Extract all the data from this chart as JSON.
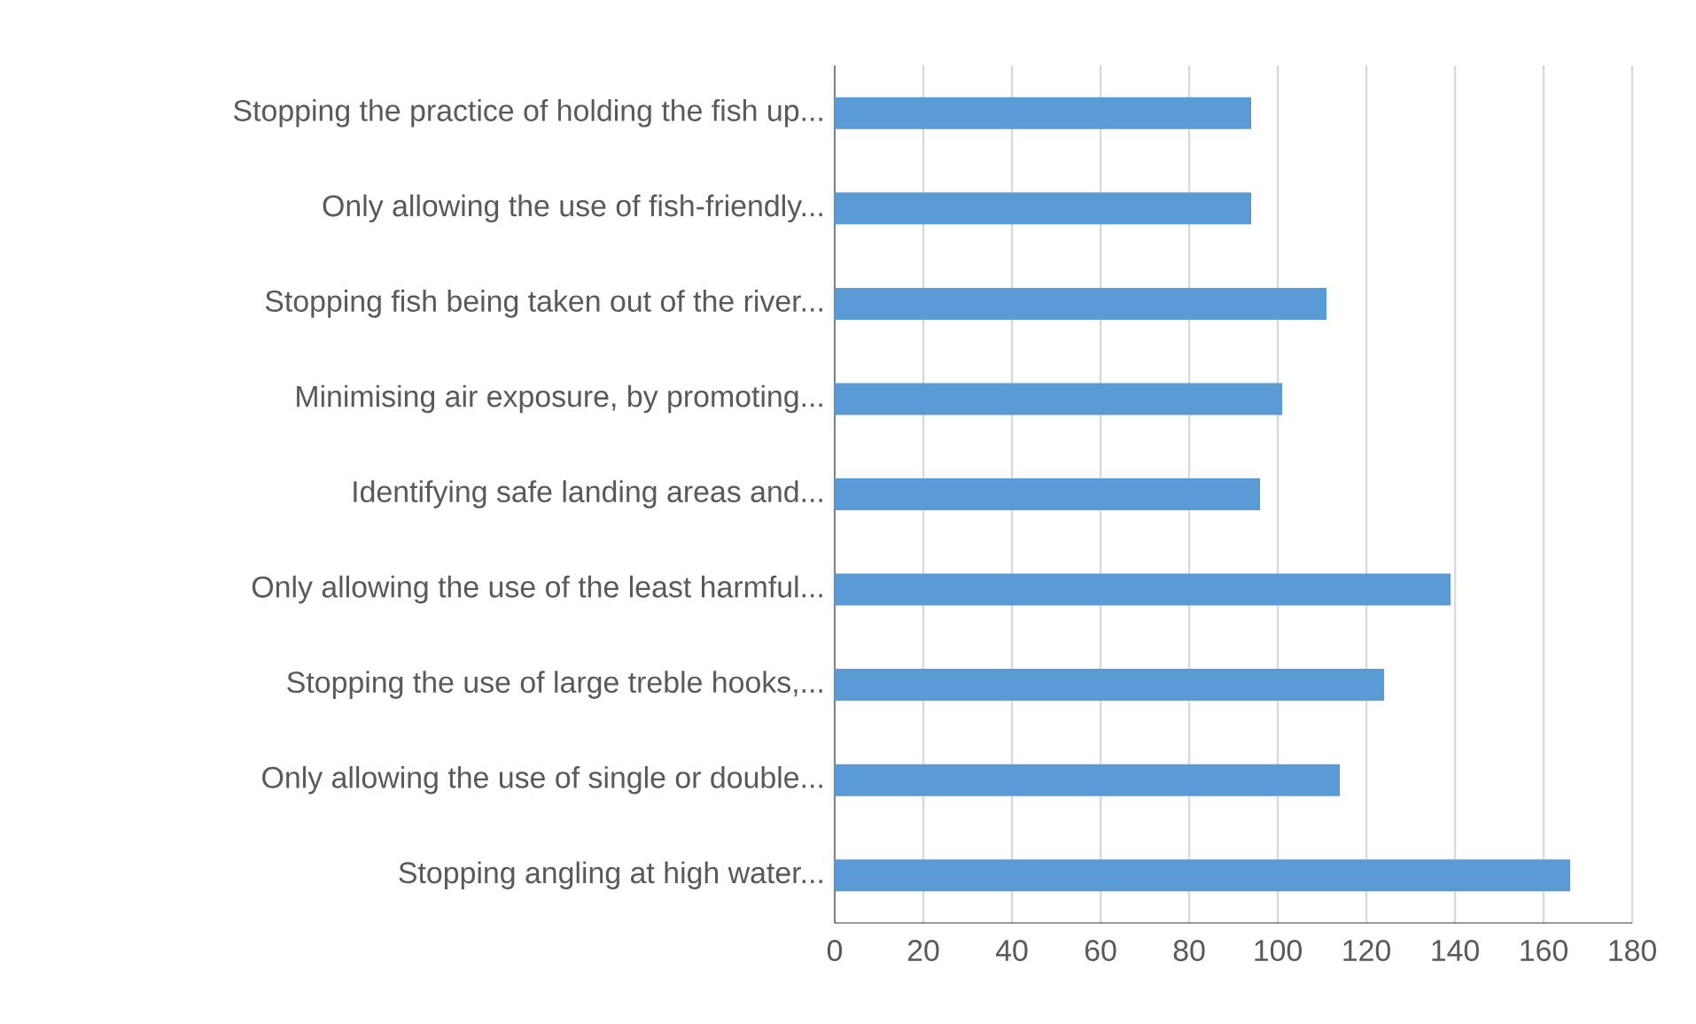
{
  "chart_data": {
    "type": "bar",
    "orientation": "horizontal",
    "categories": [
      "Stopping the practice of holding the fish up...",
      "Only allowing the use of fish-friendly...",
      "Stopping fish being taken out of the river...",
      "Minimising air exposure, by promoting...",
      "Identifying safe landing areas and...",
      "Only allowing the use of the least harmful...",
      "Stopping the use of large treble hooks,...",
      "Only allowing the use of single or double...",
      "Stopping angling at high water..."
    ],
    "values": [
      94,
      94,
      111,
      101,
      96,
      139,
      124,
      114,
      166
    ],
    "color": "#5b9bd5",
    "xlim": [
      0,
      180
    ],
    "xticks": [
      0,
      20,
      40,
      60,
      80,
      100,
      120,
      140,
      160,
      180
    ],
    "grid": "x"
  }
}
